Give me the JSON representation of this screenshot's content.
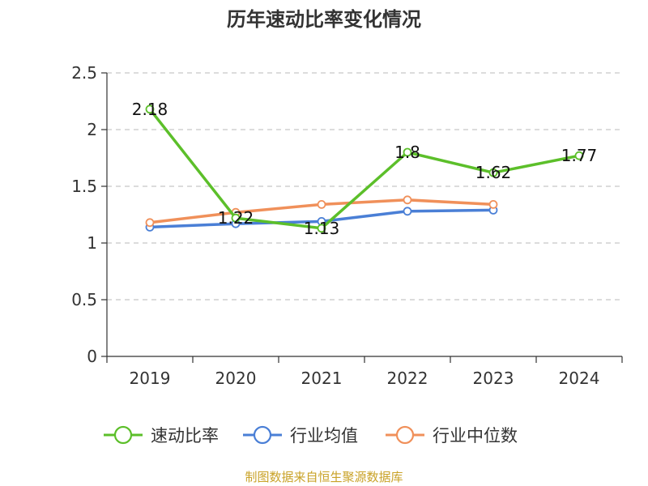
{
  "chart_data": {
    "type": "line",
    "title": "历年速动比率变化情况",
    "categories": [
      "2019",
      "2020",
      "2021",
      "2022",
      "2023",
      "2024"
    ],
    "ylim": [
      0,
      2.5
    ],
    "yticks": [
      0,
      0.5,
      1,
      1.5,
      2,
      2.5
    ],
    "ytick_labels": [
      "0",
      "0.5",
      "1",
      "1.5",
      "2",
      "2.5"
    ],
    "grid": true,
    "legend_position": "bottom",
    "series": [
      {
        "name": "速动比率",
        "color": "#5cbf2a",
        "values": [
          2.18,
          1.22,
          1.13,
          1.8,
          1.62,
          1.77
        ],
        "labels": [
          "2.18",
          "1.22",
          "1.13",
          "1.8",
          "1.62",
          "1.77"
        ]
      },
      {
        "name": "行业均值",
        "color": "#4a7fd6",
        "values": [
          1.14,
          1.17,
          1.19,
          1.28,
          1.29,
          null
        ]
      },
      {
        "name": "行业中位数",
        "color": "#f0905a",
        "values": [
          1.18,
          1.27,
          1.34,
          1.38,
          1.34,
          null
        ]
      }
    ]
  },
  "source": "制图数据来自恒生聚源数据库"
}
